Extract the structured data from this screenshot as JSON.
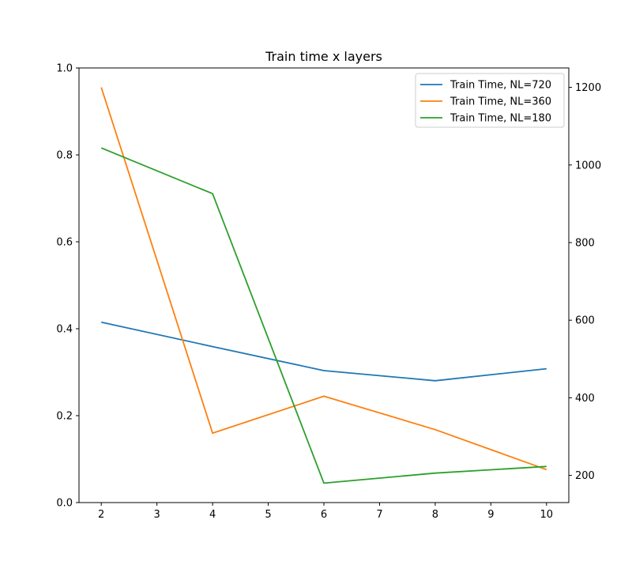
{
  "chart_data": {
    "type": "line",
    "title": "Train time x layers",
    "xlabel": "",
    "ylabel": "",
    "x": [
      2,
      4,
      6,
      8,
      10
    ],
    "xlim": [
      1.6,
      10.4
    ],
    "x_ticks": [
      2,
      3,
      4,
      5,
      6,
      7,
      8,
      9,
      10
    ],
    "left_axis": {
      "ylim": [
        0.0,
        1.0
      ],
      "ticks": [
        0.0,
        0.2,
        0.4,
        0.6,
        0.8,
        1.0
      ],
      "tick_labels": [
        "0.0",
        "0.2",
        "0.4",
        "0.6",
        "0.8",
        "1.0"
      ]
    },
    "right_axis": {
      "ylim": [
        130,
        1250
      ],
      "ticks": [
        200,
        400,
        600,
        800,
        1000,
        1200
      ],
      "tick_labels": [
        "200",
        "400",
        "600",
        "800",
        "1000",
        "1200"
      ]
    },
    "grid": false,
    "legend_position": "top-right",
    "series": [
      {
        "name": "Train Time, NL=720",
        "color": "#1f77b4",
        "axis": "right",
        "values": [
          595,
          532,
          470,
          444,
          475
        ]
      },
      {
        "name": "Train Time, NL=360",
        "color": "#ff7f0e",
        "axis": "right",
        "values": [
          1200,
          309,
          404,
          318,
          215
        ]
      },
      {
        "name": "Train Time, NL=180",
        "color": "#2ca02c",
        "axis": "right",
        "values": [
          1044,
          926,
          180,
          206,
          223
        ]
      }
    ]
  }
}
